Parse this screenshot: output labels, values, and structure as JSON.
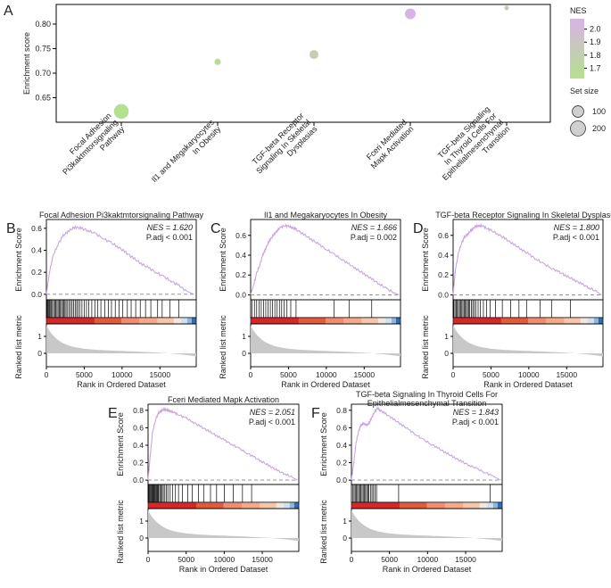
{
  "colors": {
    "nes_low": "#b5e08e",
    "nes_high": "#d9b3e6",
    "curve": "#c7a6e0",
    "bar_red": "#d62728",
    "bar_salmon": "#f08c70",
    "bar_peach": "#f7c6a8",
    "bar_blue": "#2f6db0",
    "metric_fill": "#c8c8c8"
  },
  "chart_data": [
    {
      "id": "A",
      "type": "scatter",
      "panel_label": "A",
      "ylabel": "Enrichment score",
      "ylim": [
        0.6,
        0.84
      ],
      "yticks": [
        "0.65",
        "0.70",
        "0.75",
        "0.80"
      ],
      "categories": [
        [
          "Focal Adhesion",
          "Pi3kaktmtorsignaling",
          "Pathway"
        ],
        [
          "Il1 and Megakaryocytes",
          "In Obesity"
        ],
        [
          "TGF-beta Receptor",
          "Signaling In Skeletal",
          "Dysplasias"
        ],
        [
          "Fceri Mediated",
          "Mapk Activation"
        ],
        [
          "TGF-beta Signaling",
          "In Thyroid Cells For",
          "Epithelialmesenchymal",
          "Transition"
        ]
      ],
      "points": [
        {
          "es": 0.622,
          "nes": 1.62,
          "size": 188
        },
        {
          "es": 0.723,
          "nes": 1.666,
          "size": 35
        },
        {
          "es": 0.738,
          "nes": 1.8,
          "size": 70
        },
        {
          "es": 0.821,
          "nes": 2.051,
          "size": 100
        },
        {
          "es": 0.833,
          "nes": 1.843,
          "size": 12
        }
      ],
      "legend": {
        "color_title": "NES",
        "color_ticks": [
          "2.0",
          "1.9",
          "1.8",
          "1.7"
        ],
        "color_range": [
          1.62,
          2.06
        ],
        "size_title": "Set size",
        "size_labels": [
          "100",
          "200"
        ],
        "size_values": [
          100,
          200
        ]
      }
    },
    {
      "id": "B",
      "type": "line",
      "panel_label": "B",
      "title": "Focal Adhesion Pi3kaktmtorsignaling Pathway",
      "nes_text": "NES = 1.620",
      "padj_text": "P.adj < 0.001",
      "x": [
        0,
        400,
        900,
        1500,
        2200,
        3000,
        3800,
        4600,
        5500,
        6500,
        7500,
        8500,
        9500,
        10500,
        11500,
        12500,
        13500,
        14500,
        15500,
        16500,
        17500,
        18500,
        19500
      ],
      "y": [
        0.0,
        0.2,
        0.35,
        0.45,
        0.53,
        0.58,
        0.61,
        0.6,
        0.58,
        0.55,
        0.51,
        0.47,
        0.43,
        0.38,
        0.33,
        0.28,
        0.24,
        0.2,
        0.16,
        0.12,
        0.08,
        0.03,
        0.0
      ],
      "ylim": [
        -0.05,
        0.68
      ],
      "yticks": [
        "0.6",
        "0.4",
        "0.2",
        "0.0"
      ],
      "xlim": [
        0,
        19800
      ],
      "xticks": [
        "0",
        "5000",
        "10000",
        "15000"
      ],
      "hits": [
        100,
        200,
        300,
        400,
        500,
        650,
        800,
        950,
        1100,
        1250,
        1400,
        1550,
        1700,
        1850,
        2000,
        2150,
        2300,
        2450,
        2600,
        2800,
        3000,
        3200,
        3400,
        3600,
        3800,
        4000,
        4200,
        4400,
        4700,
        5000,
        5300,
        5600,
        6000,
        6400,
        6800,
        7200,
        7700,
        8200,
        8600,
        9100,
        9600,
        10100,
        10700,
        11200,
        11800,
        12400,
        13100,
        13800,
        14700,
        15300,
        16300,
        17500
      ],
      "ylabel_es": "Enrichment Score",
      "ylabel_metric": "Ranked list metric",
      "metric_ticks": [
        "1",
        "0"
      ],
      "xlabel": "Rank in Ordered Dataset"
    },
    {
      "id": "C",
      "type": "line",
      "panel_label": "C",
      "title": "Il1 and Megakaryocytes In Obesity",
      "nes_text": "NES = 1.666",
      "padj_text": "P.adj = 0.002",
      "x": [
        0,
        400,
        800,
        1200,
        1600,
        2000,
        2500,
        3000,
        3500,
        4000,
        4500,
        5000,
        5500,
        6000,
        7000,
        8000,
        9000,
        10000,
        11000,
        12000,
        13000,
        14000,
        15000,
        16000,
        17000,
        18000,
        19000,
        19600
      ],
      "y": [
        0.0,
        0.1,
        0.22,
        0.3,
        0.4,
        0.47,
        0.55,
        0.6,
        0.65,
        0.68,
        0.7,
        0.69,
        0.68,
        0.66,
        0.61,
        0.56,
        0.51,
        0.46,
        0.41,
        0.36,
        0.31,
        0.26,
        0.21,
        0.16,
        0.11,
        0.06,
        0.02,
        0.0
      ],
      "ylim": [
        -0.05,
        0.76
      ],
      "yticks": [
        "0.6",
        "0.4",
        "0.2",
        "0.0"
      ],
      "xlim": [
        0,
        19800
      ],
      "xticks": [
        "0",
        "5000",
        "10000",
        "15000"
      ],
      "hits": [
        200,
        500,
        800,
        1100,
        1400,
        1700,
        2000,
        2300,
        2600,
        2900,
        3200,
        3500,
        3800,
        4100,
        4400,
        4800,
        5300,
        6000,
        11000,
        13000,
        16000
      ],
      "ylabel_es": "Enrichment Score",
      "ylabel_metric": "Ranked list metric",
      "metric_ticks": [
        "1",
        "0"
      ],
      "xlabel": "Rank in Ordered Dataset"
    },
    {
      "id": "D",
      "type": "line",
      "panel_label": "D",
      "title": "TGF-beta Receptor Signaling In Skeletal Dysplasias",
      "nes_text": "NES = 1.800",
      "padj_text": "P.adj < 0.001",
      "x": [
        0,
        300,
        700,
        1100,
        1500,
        2000,
        2500,
        3000,
        3500,
        4000,
        4500,
        5000,
        6000,
        7000,
        8000,
        9000,
        10000,
        11000,
        12000,
        13000,
        14000,
        15000,
        16000,
        17000,
        18000,
        19000,
        19600
      ],
      "y": [
        0.0,
        0.25,
        0.42,
        0.52,
        0.58,
        0.62,
        0.66,
        0.69,
        0.7,
        0.69,
        0.67,
        0.65,
        0.61,
        0.56,
        0.51,
        0.46,
        0.41,
        0.36,
        0.31,
        0.27,
        0.23,
        0.19,
        0.15,
        0.11,
        0.07,
        0.03,
        0.0
      ],
      "ylim": [
        -0.05,
        0.76
      ],
      "yticks": [
        "0.6",
        "0.4",
        "0.2",
        "0.0"
      ],
      "xlim": [
        0,
        19800
      ],
      "xticks": [
        "0",
        "5000",
        "10000",
        "15000"
      ],
      "hits": [
        100,
        250,
        400,
        550,
        700,
        850,
        1000,
        1150,
        1300,
        1450,
        1600,
        1750,
        1900,
        2050,
        2200,
        2400,
        2600,
        2800,
        3000,
        3300,
        3600,
        4000,
        4400,
        4900,
        5600,
        6500,
        7600,
        8700,
        9700,
        11500,
        13000,
        15500
      ],
      "ylabel_es": "Enrichment Score",
      "ylabel_metric": "Ranked list metric",
      "metric_ticks": [
        "1",
        "0"
      ],
      "xlabel": "Rank in Ordered Dataset"
    },
    {
      "id": "E",
      "type": "line",
      "panel_label": "E",
      "title": "Fceri Mediated Mapk Activation",
      "nes_text": "NES = 2.051",
      "padj_text": "P.adj < 0.001",
      "x": [
        0,
        300,
        600,
        1000,
        1400,
        1800,
        2200,
        2600,
        3000,
        3500,
        4000,
        5000,
        6000,
        7000,
        8000,
        9000,
        10000,
        11000,
        12000,
        13000,
        14000,
        15000,
        16000,
        17000,
        18000,
        19000,
        19600
      ],
      "y": [
        0.0,
        0.3,
        0.55,
        0.7,
        0.77,
        0.8,
        0.81,
        0.8,
        0.79,
        0.77,
        0.75,
        0.71,
        0.66,
        0.61,
        0.56,
        0.51,
        0.46,
        0.41,
        0.36,
        0.31,
        0.26,
        0.21,
        0.16,
        0.11,
        0.07,
        0.03,
        0.0
      ],
      "ylim": [
        -0.05,
        0.87
      ],
      "yticks": [
        "0.8",
        "0.6",
        "0.4",
        "0.2",
        "0.0"
      ],
      "xlim": [
        0,
        19800
      ],
      "xticks": [
        "0",
        "5000",
        "10000",
        "15000"
      ],
      "hits": [
        100,
        200,
        300,
        400,
        500,
        600,
        700,
        800,
        900,
        1000,
        1100,
        1200,
        1300,
        1400,
        1550,
        1700,
        1850,
        2000,
        2200,
        2400,
        2600,
        2900,
        3200,
        3600,
        4000,
        4500,
        5200,
        5800,
        6600,
        7300,
        8200,
        9000,
        10000,
        11200,
        12400,
        13600
      ],
      "ylabel_es": "Enrichment Score",
      "ylabel_metric": "Ranked list metric",
      "metric_ticks": [
        "1",
        "0"
      ],
      "xlabel": "Rank in Ordered Dataset"
    },
    {
      "id": "F",
      "type": "line",
      "panel_label": "F",
      "title": "TGF-beta Signaling In Thyroid Cells For",
      "title2": "Epithelialmesenchymal Transition",
      "nes_text": "NES = 1.843",
      "padj_text": "P.adj < 0.001",
      "x": [
        0,
        300,
        600,
        900,
        1200,
        1500,
        1800,
        2100,
        2400,
        2700,
        3000,
        3400,
        3800,
        4500,
        5500,
        6500,
        7500,
        8500,
        9500,
        10500,
        11500,
        12500,
        13500,
        14500,
        15500,
        16500,
        17500,
        18500,
        19600
      ],
      "y": [
        0.0,
        0.2,
        0.42,
        0.55,
        0.62,
        0.65,
        0.64,
        0.63,
        0.67,
        0.72,
        0.78,
        0.82,
        0.8,
        0.76,
        0.7,
        0.64,
        0.58,
        0.52,
        0.46,
        0.41,
        0.36,
        0.31,
        0.26,
        0.21,
        0.17,
        0.13,
        0.09,
        0.05,
        0.0
      ],
      "ylim": [
        -0.05,
        0.87
      ],
      "yticks": [
        "0.8",
        "0.6",
        "0.4",
        "0.2",
        "0.0"
      ],
      "xlim": [
        0,
        19800
      ],
      "xticks": [
        "0",
        "5000",
        "10000",
        "15000"
      ],
      "hits": [
        200,
        350,
        500,
        650,
        800,
        950,
        1100,
        1250,
        1400,
        1550,
        1700,
        1850,
        2000,
        2150,
        2300,
        2500,
        2700,
        2900,
        3100,
        3300,
        6200,
        18200
      ],
      "ylabel_es": "Enrichment Score",
      "ylabel_metric": "Ranked list metric",
      "metric_ticks": [
        "1",
        "0"
      ],
      "xlabel": "Rank in Ordered Dataset"
    }
  ]
}
